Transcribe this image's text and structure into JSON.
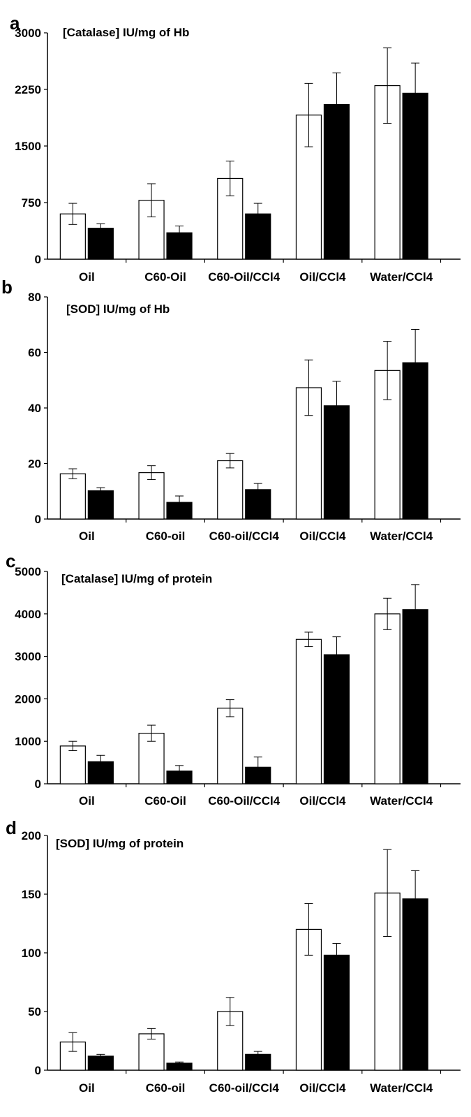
{
  "figure": {
    "chart_data": [
      {
        "panel": "a",
        "type": "bar",
        "title": "[Catalase] IU/mg of Hb",
        "categories": [
          "Oil",
          "C60-Oil",
          "C60-Oil/CCl4",
          "Oil/CCl4",
          "Water/CCl4"
        ],
        "yticks": [
          "0",
          "750",
          "1500",
          "2250",
          "3000"
        ],
        "ylim": [
          0,
          3000
        ],
        "series": [
          {
            "fill": "#ffffff",
            "values": [
              600,
              780,
              1070,
              1910,
              2300
            ],
            "errors": [
              140,
              220,
              230,
              420,
              500
            ]
          },
          {
            "fill": "#000000",
            "values": [
              410,
              350,
              600,
              2050,
              2200
            ],
            "errors": [
              60,
              90,
              140,
              420,
              400
            ]
          }
        ]
      },
      {
        "panel": "b",
        "type": "bar",
        "title": "[SOD] IU/mg of Hb",
        "categories": [
          "Oil",
          "C60-oil",
          "C60-oil/CCl4",
          "Oil/CCl4",
          "Water/CCl4"
        ],
        "yticks": [
          "0",
          "20",
          "40",
          "60",
          "80"
        ],
        "ylim": [
          0,
          80
        ],
        "series": [
          {
            "fill": "#ffffff",
            "values": [
              16.3,
              16.7,
              21,
              47.3,
              53.5
            ],
            "errors": [
              1.8,
              2.5,
              2.6,
              10,
              10.5
            ]
          },
          {
            "fill": "#000000",
            "values": [
              10.2,
              6,
              10.6,
              40.8,
              56.3
            ],
            "errors": [
              1.1,
              2.3,
              2.2,
              8.8,
              12
            ]
          }
        ]
      },
      {
        "panel": "c",
        "type": "bar",
        "title": "[Catalase] IU/mg of protein",
        "categories": [
          "Oil",
          "C60-Oil",
          "C60-Oil/CCl4",
          "Oil/CCl4",
          "Water/CCl4"
        ],
        "yticks": [
          "0",
          "1000",
          "2000",
          "3000",
          "4000",
          "5000"
        ],
        "ylim": [
          0,
          5000
        ],
        "series": [
          {
            "fill": "#ffffff",
            "values": [
              890,
              1190,
              1780,
              3400,
              4000
            ],
            "errors": [
              110,
              190,
              200,
              170,
              370
            ]
          },
          {
            "fill": "#000000",
            "values": [
              520,
              300,
              390,
              3040,
              4100
            ],
            "errors": [
              150,
              130,
              240,
              420,
              590
            ]
          }
        ]
      },
      {
        "panel": "d",
        "type": "bar",
        "title": "[SOD] IU/mg of protein",
        "categories": [
          "Oil",
          "C60-oil",
          "C60-oil/CCl4",
          "Oil/CCl4",
          "Water/CCl4"
        ],
        "yticks": [
          "0",
          "50",
          "100",
          "150",
          "200"
        ],
        "ylim": [
          0,
          200
        ],
        "series": [
          {
            "fill": "#ffffff",
            "values": [
              24,
              31,
              50,
              120,
              151
            ],
            "errors": [
              8,
              4.5,
              12,
              22,
              37
            ]
          },
          {
            "fill": "#000000",
            "values": [
              12,
              6,
              13.5,
              98,
              146
            ],
            "errors": [
              1.5,
              1,
              2.5,
              10,
              24
            ]
          }
        ]
      }
    ]
  }
}
